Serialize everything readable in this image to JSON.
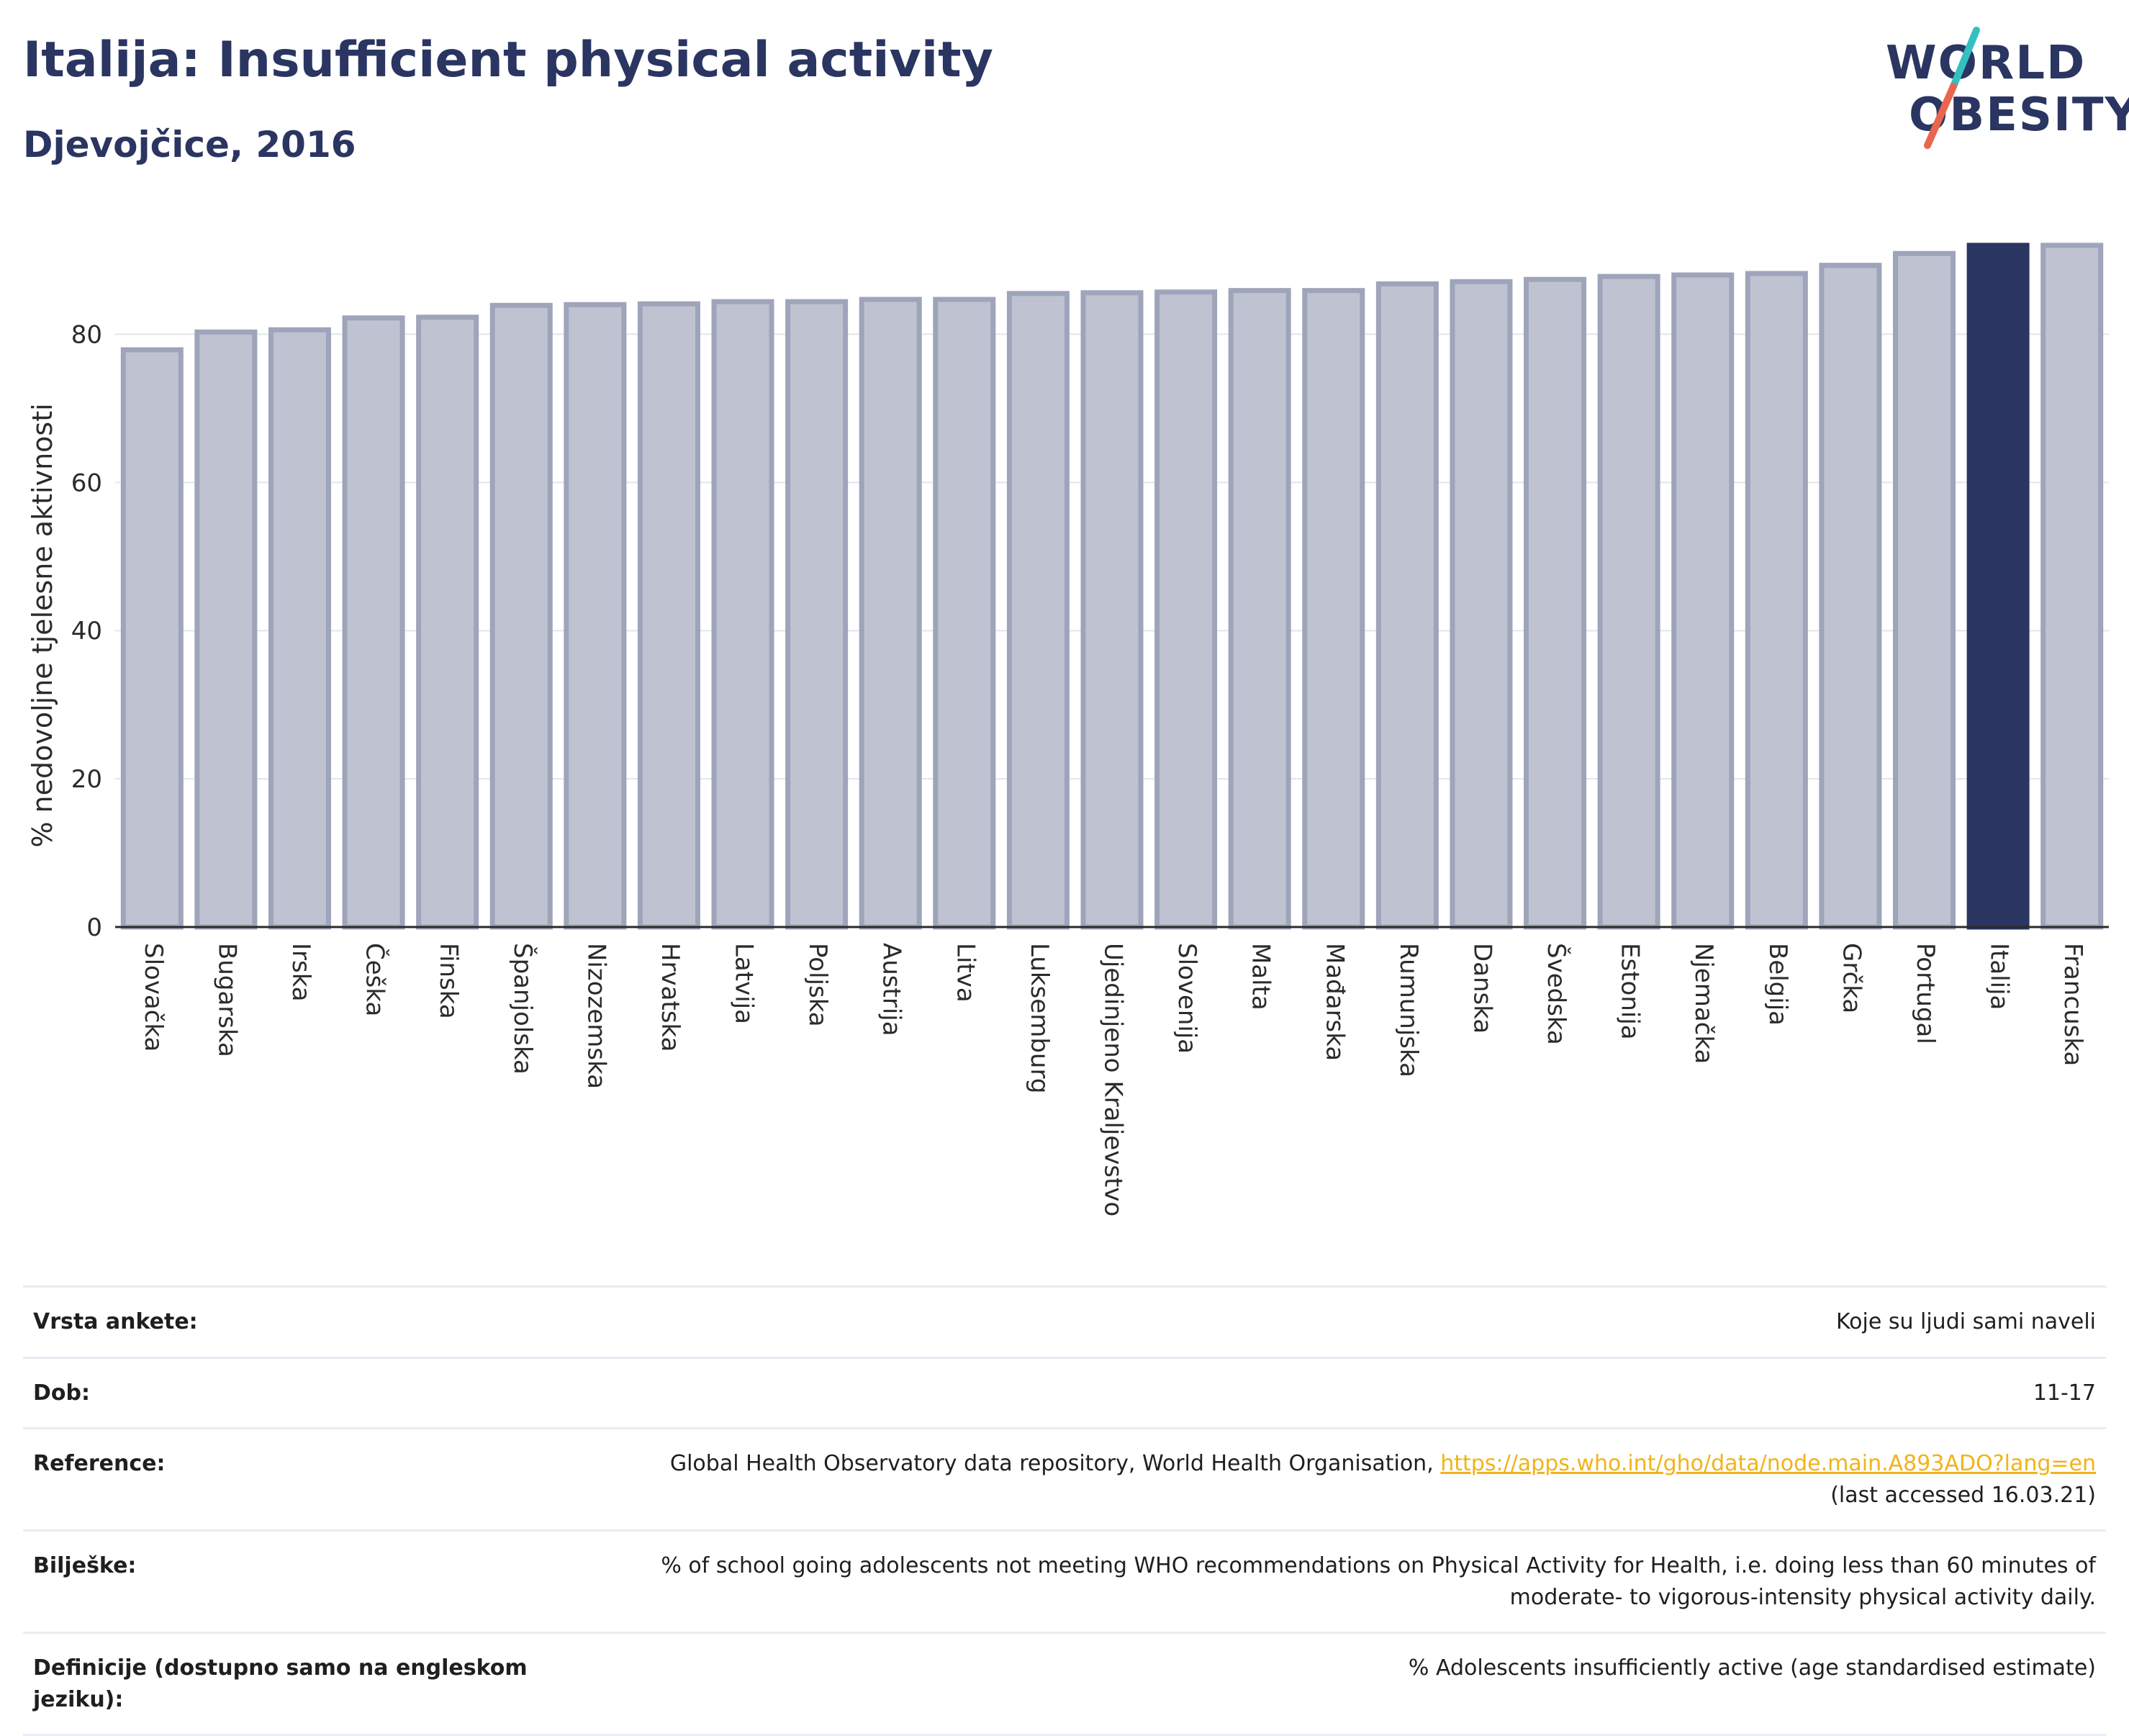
{
  "header": {
    "title": "Italija: Insufficient physical activity",
    "subtitle": "Djevojčice, 2016"
  },
  "logo": {
    "line1": "WORLD",
    "line2": "OBESITY",
    "slash_colors": [
      "#34c0c0",
      "#e8664f"
    ]
  },
  "colors": {
    "bar_default": "#bfc3d1",
    "bar_border": "#9ea4ba",
    "bar_highlight": "#2a3561",
    "grid": "#e2e5ee",
    "axis": "#2b2b2b"
  },
  "chart_data": {
    "type": "bar",
    "ylabel": "% nedovoljne tjelesne aktivnosti",
    "xlabel": "",
    "ylim": [
      0,
      95
    ],
    "yticks": [
      0,
      20,
      40,
      60,
      80
    ],
    "grid": true,
    "highlight": "Italija",
    "categories": [
      "Slovačka",
      "Bugarska",
      "Irska",
      "Češka",
      "Finska",
      "Španjolska",
      "Nizozemska",
      "Hrvatska",
      "Latvija",
      "Poljska",
      "Austrija",
      "Litva",
      "Luksemburg",
      "Ujedinjeno Kraljevstvo",
      "Slovenija",
      "Malta",
      "Mađarska",
      "Rumunjska",
      "Danska",
      "Švedska",
      "Estonija",
      "Njemačka",
      "Belgija",
      "Grčka",
      "Portugal",
      "Italija",
      "Francuska"
    ],
    "values": [
      77.9,
      80.3,
      80.6,
      82.2,
      82.3,
      83.9,
      84.0,
      84.1,
      84.4,
      84.4,
      84.7,
      84.7,
      85.5,
      85.6,
      85.7,
      85.9,
      85.9,
      86.8,
      87.1,
      87.4,
      87.8,
      88.0,
      88.2,
      89.3,
      90.9,
      92.0,
      92.0
    ]
  },
  "info": {
    "rows": [
      {
        "label": "Vrsta ankete:",
        "value": "Koje su ljudi sami naveli"
      },
      {
        "label": "Dob:",
        "value": "11-17"
      },
      {
        "label": "Reference:",
        "value": "Global Health Observatory data repository, World Health Organisation, ",
        "link": "https://apps.who.int/gho/data/node.main.A893ADO?lang=en",
        "extra": "(last accessed 16.03.21)"
      },
      {
        "label": "Bilješke:",
        "value": "% of school going adolescents not meeting WHO recommendations on Physical Activity for Health, i.e. doing less than 60 minutes of moderate- to vigorous-intensity physical activity daily."
      },
      {
        "label": "Definicije (dostupno samo na engleskom jeziku):",
        "value": "% Adolescents insufficiently active (age standardised estimate)"
      }
    ]
  }
}
